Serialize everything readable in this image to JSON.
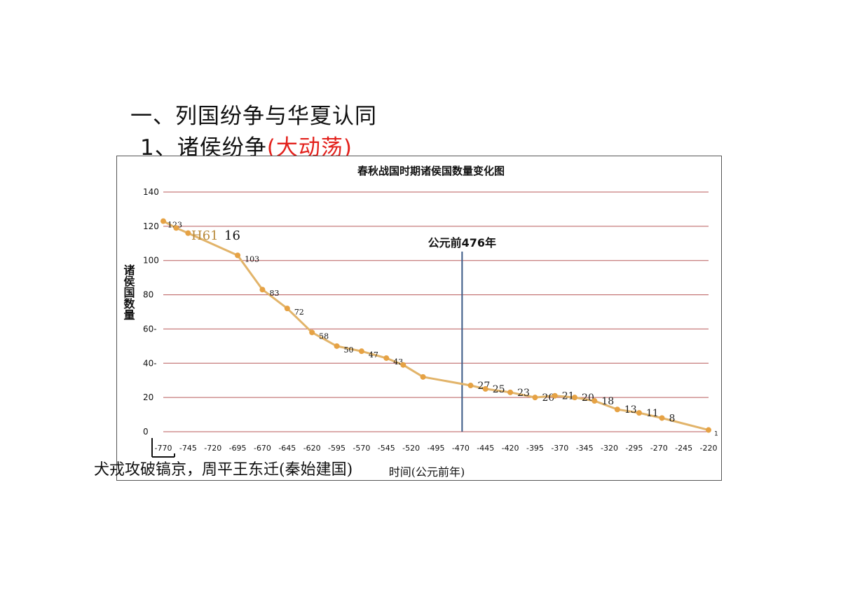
{
  "headings": {
    "h1": "一、列国纷争与华夏认同",
    "h2_prefix": "1、诸侯纷争",
    "h2_highlight": "(大动荡)"
  },
  "footnote": "犬戎攻破镐京，周平王东迁(秦始建国)",
  "colors": {
    "line": "#e2b46a",
    "marker": "#e6a244",
    "grid": "#b85a5a",
    "divider": "#3b5b86",
    "highlight": "#e3211c"
  },
  "chart_data": {
    "type": "line",
    "title": "春秋战国时期诸侯国数量变化图",
    "ylabel": "诸侯国数量",
    "xlabel": "时间(公元前年)",
    "ylim": [
      0,
      140
    ],
    "yticks": [
      "0",
      "20",
      "40-",
      "60-",
      "80",
      "100",
      "120",
      "140"
    ],
    "xlim": [
      -770,
      -220
    ],
    "xticks": [
      "-770",
      "-745",
      "-720",
      "-695",
      "-670",
      "-645",
      "-620",
      "-595",
      "-570",
      "-545",
      "-520",
      "-495",
      "-470",
      "-445",
      "-420",
      "-395",
      "-370",
      "-345",
      "-320",
      "-295",
      "-270",
      "-245",
      "-220"
    ],
    "grid": true,
    "series": [
      {
        "points": [
          {
            "x": -770,
            "y": 123,
            "label": "123"
          },
          {
            "x": -757,
            "y": 119,
            "label": ""
          },
          {
            "x": -745,
            "y": 116,
            "label": "H61 16"
          },
          {
            "x": -695,
            "y": 103,
            "label": "103"
          },
          {
            "x": -670,
            "y": 83,
            "label": "83"
          },
          {
            "x": -645,
            "y": 72,
            "label": "72"
          },
          {
            "x": -620,
            "y": 58,
            "label": "58"
          },
          {
            "x": -595,
            "y": 50,
            "label": "50"
          },
          {
            "x": -570,
            "y": 47,
            "label": "47"
          },
          {
            "x": -545,
            "y": 43,
            "label": "43"
          },
          {
            "x": -528,
            "y": 39,
            "label": ""
          },
          {
            "x": -508,
            "y": 32,
            "label": ""
          },
          {
            "x": -460,
            "y": 27,
            "label": "27"
          },
          {
            "x": -445,
            "y": 25,
            "label": "25"
          },
          {
            "x": -420,
            "y": 23,
            "label": "23"
          },
          {
            "x": -395,
            "y": 20,
            "label": "20"
          },
          {
            "x": -375,
            "y": 21,
            "label": "21"
          },
          {
            "x": -355,
            "y": 20,
            "label": "20"
          },
          {
            "x": -335,
            "y": 18,
            "label": "18"
          },
          {
            "x": -312,
            "y": 13,
            "label": "13"
          },
          {
            "x": -290,
            "y": 11,
            "label": "11"
          },
          {
            "x": -267,
            "y": 8,
            "label": "8"
          },
          {
            "x": -220,
            "y": 1,
            "label": "1"
          }
        ]
      }
    ],
    "annotations": [
      {
        "x": -470,
        "text": "公元前476年"
      }
    ]
  }
}
